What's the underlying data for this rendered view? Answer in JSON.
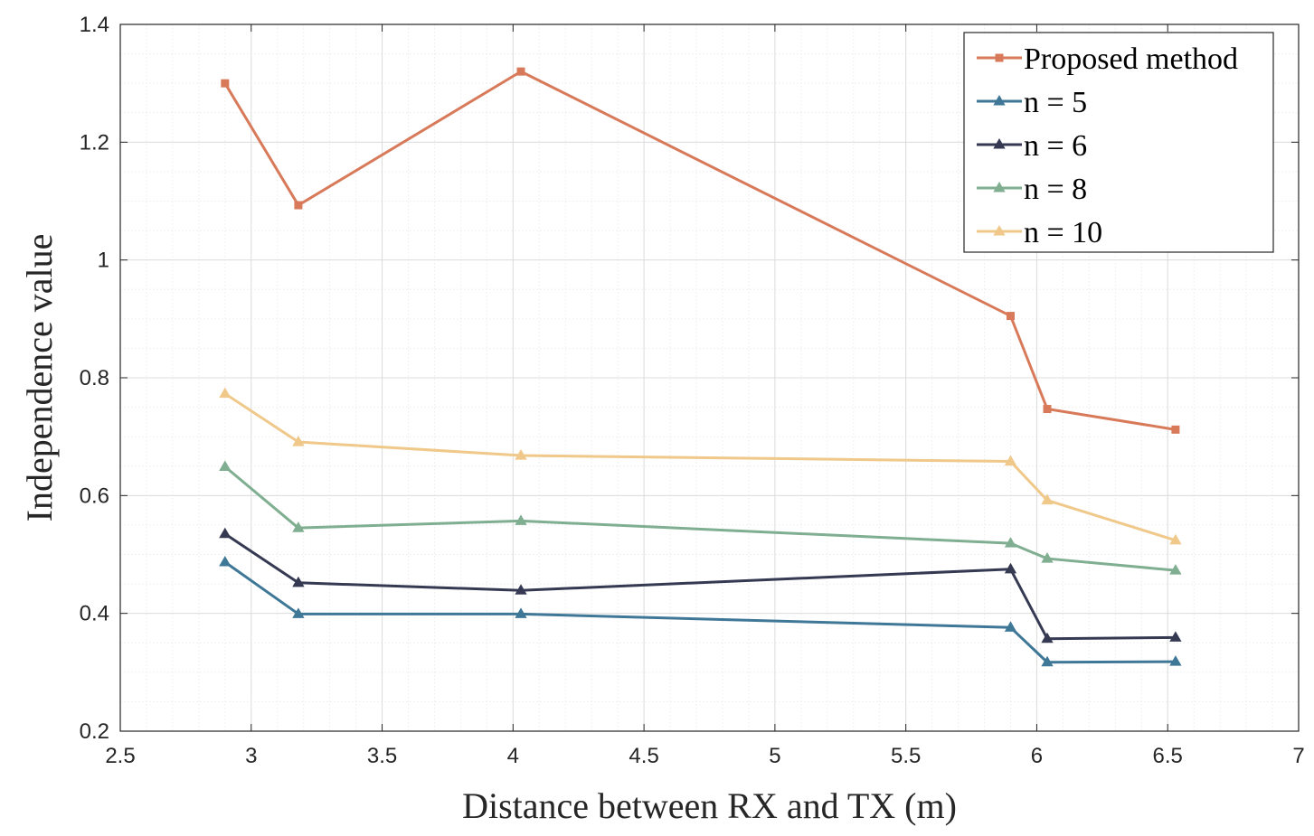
{
  "chart_data": {
    "type": "line",
    "title": "",
    "xlabel": "Distance between RX and TX (m)",
    "ylabel": "Independence value",
    "xlim": [
      2.5,
      7
    ],
    "ylim": [
      0.2,
      1.4
    ],
    "xticks": [
      "2.5",
      "3",
      "3.5",
      "4",
      "4.5",
      "5",
      "5.5",
      "6",
      "6.5",
      "7"
    ],
    "yticks": [
      "0.2",
      "0.4",
      "0.6",
      "0.8",
      "1",
      "1.2",
      "1.4"
    ],
    "grid": true,
    "minor_grid": true,
    "legend_position": "top-right",
    "x": [
      2.9,
      3.18,
      4.03,
      5.9,
      6.04,
      6.53
    ],
    "series": [
      {
        "name": "Proposed method",
        "marker": "square",
        "color": "#d87a5a",
        "values": [
          1.3,
          1.093,
          1.32,
          0.905,
          0.747,
          0.712
        ]
      },
      {
        "name": "n = 5",
        "marker": "triangle",
        "color": "#3f7797",
        "values": [
          0.487,
          0.399,
          0.399,
          0.376,
          0.317,
          0.318
        ]
      },
      {
        "name": "n = 6",
        "marker": "triangle",
        "color": "#353a52",
        "values": [
          0.535,
          0.452,
          0.439,
          0.475,
          0.357,
          0.359
        ]
      },
      {
        "name": "n = 8",
        "marker": "triangle",
        "color": "#7fae91",
        "values": [
          0.649,
          0.545,
          0.557,
          0.519,
          0.493,
          0.473
        ]
      },
      {
        "name": "n = 10",
        "marker": "triangle",
        "color": "#efc88a",
        "values": [
          0.773,
          0.691,
          0.668,
          0.658,
          0.592,
          0.524
        ]
      }
    ]
  }
}
